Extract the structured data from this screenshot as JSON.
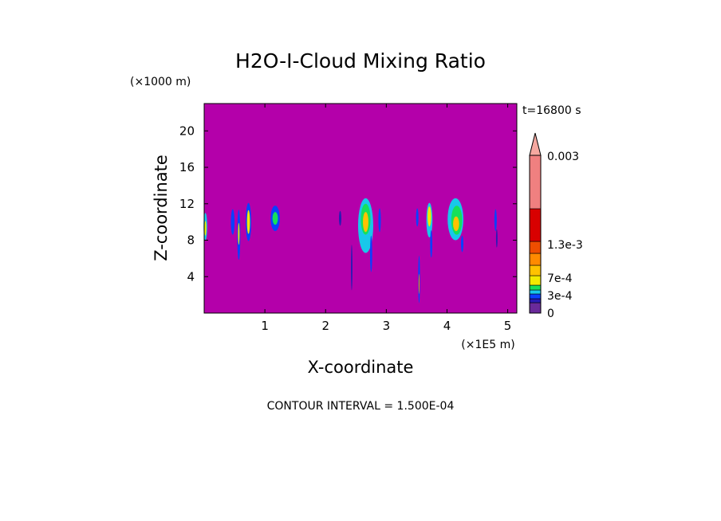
{
  "chart_data": {
    "type": "heatmap",
    "title": "H2O-I-Cloud Mixing Ratio",
    "xlabel": "X-coordinate",
    "ylabel": "Z-coordinate",
    "x_unit": "(×1E5 m)",
    "y_unit": "(×1000 m)",
    "time_label": "t=16800 s",
    "footer": "CONTOUR INTERVAL = 1.500E-04",
    "xlim": [
      0,
      5.15
    ],
    "ylim": [
      0,
      23
    ],
    "x_ticks": [
      1,
      2,
      3,
      4,
      5
    ],
    "y_ticks": [
      4,
      8,
      12,
      16,
      20
    ],
    "background_color": "#b400aa",
    "colorbar": {
      "levels": [
        0,
        0.00015,
        0.0003,
        0.00045,
        0.0006,
        0.00075,
        0.0009,
        0.00105,
        0.0012,
        0.00135,
        0.0015,
        0.003
      ],
      "colors": [
        "#6a2a9a",
        "#2a1ab4",
        "#0a40ff",
        "#18c8ea",
        "#16e05a",
        "#f2ea00",
        "#ffc200",
        "#ff8a00",
        "#ee4e00",
        "#d80000",
        "#f08080"
      ],
      "overflow_color": "#f5a8a0",
      "tick_labels": [
        {
          "value": 0,
          "label": "0"
        },
        {
          "value": 0.0003,
          "label": "3e-4"
        },
        {
          "value": 0.0007,
          "label": "7e-4"
        },
        {
          "value": 0.0013,
          "label": "1.3e-3"
        },
        {
          "value": 0.003,
          "label": "0.003"
        }
      ]
    },
    "cells": [
      {
        "x": 0.02,
        "z": 9.5,
        "w": 0.06,
        "h": 3.0,
        "v": 0.0005
      },
      {
        "x": 0.02,
        "z": 9.3,
        "w": 0.03,
        "h": 1.6,
        "v": 0.0008
      },
      {
        "x": 0.47,
        "z": 10.0,
        "w": 0.06,
        "h": 2.8,
        "v": 0.0003
      },
      {
        "x": 0.57,
        "z": 8.6,
        "w": 0.05,
        "h": 5.5,
        "v": 0.0004
      },
      {
        "x": 0.57,
        "z": 8.7,
        "w": 0.025,
        "h": 2.4,
        "v": 0.0008
      },
      {
        "x": 0.73,
        "z": 10.0,
        "w": 0.09,
        "h": 4.2,
        "v": 0.0004
      },
      {
        "x": 0.73,
        "z": 10.0,
        "w": 0.05,
        "h": 2.6,
        "v": 0.0008
      },
      {
        "x": 1.17,
        "z": 10.4,
        "w": 0.15,
        "h": 2.8,
        "v": 0.0003
      },
      {
        "x": 1.17,
        "z": 10.4,
        "w": 0.09,
        "h": 1.4,
        "v": 0.0007
      },
      {
        "x": 2.24,
        "z": 10.4,
        "w": 0.04,
        "h": 1.6,
        "v": 0.00025
      },
      {
        "x": 2.43,
        "z": 5.0,
        "w": 0.025,
        "h": 5.0,
        "v": 0.00025
      },
      {
        "x": 2.66,
        "z": 9.6,
        "w": 0.25,
        "h": 6.0,
        "v": 0.00045
      },
      {
        "x": 2.66,
        "z": 10.3,
        "w": 0.16,
        "h": 3.4,
        "v": 0.0006
      },
      {
        "x": 2.66,
        "z": 10.0,
        "w": 0.09,
        "h": 2.2,
        "v": 0.0009
      },
      {
        "x": 2.75,
        "z": 6.5,
        "w": 0.035,
        "h": 4.0,
        "v": 0.0003
      },
      {
        "x": 2.89,
        "z": 10.2,
        "w": 0.04,
        "h": 2.6,
        "v": 0.0003
      },
      {
        "x": 3.51,
        "z": 10.5,
        "w": 0.04,
        "h": 2.0,
        "v": 0.0003
      },
      {
        "x": 3.54,
        "z": 3.7,
        "w": 0.03,
        "h": 5.2,
        "v": 0.0004
      },
      {
        "x": 3.54,
        "z": 3.2,
        "w": 0.015,
        "h": 2.2,
        "v": 0.0011
      },
      {
        "x": 3.71,
        "z": 10.2,
        "w": 0.1,
        "h": 3.8,
        "v": 0.0005
      },
      {
        "x": 3.71,
        "z": 10.6,
        "w": 0.06,
        "h": 2.2,
        "v": 0.0008
      },
      {
        "x": 3.74,
        "z": 7.6,
        "w": 0.035,
        "h": 3.0,
        "v": 0.0003
      },
      {
        "x": 4.14,
        "z": 10.3,
        "w": 0.26,
        "h": 4.6,
        "v": 0.00045
      },
      {
        "x": 4.16,
        "z": 10.2,
        "w": 0.18,
        "h": 3.2,
        "v": 0.0007
      },
      {
        "x": 4.15,
        "z": 9.8,
        "w": 0.1,
        "h": 1.6,
        "v": 0.0009
      },
      {
        "x": 4.25,
        "z": 7.6,
        "w": 0.04,
        "h": 1.8,
        "v": 0.0003
      },
      {
        "x": 4.8,
        "z": 10.2,
        "w": 0.04,
        "h": 2.4,
        "v": 0.0003
      },
      {
        "x": 4.82,
        "z": 8.2,
        "w": 0.025,
        "h": 2.0,
        "v": 0.00025
      }
    ]
  }
}
